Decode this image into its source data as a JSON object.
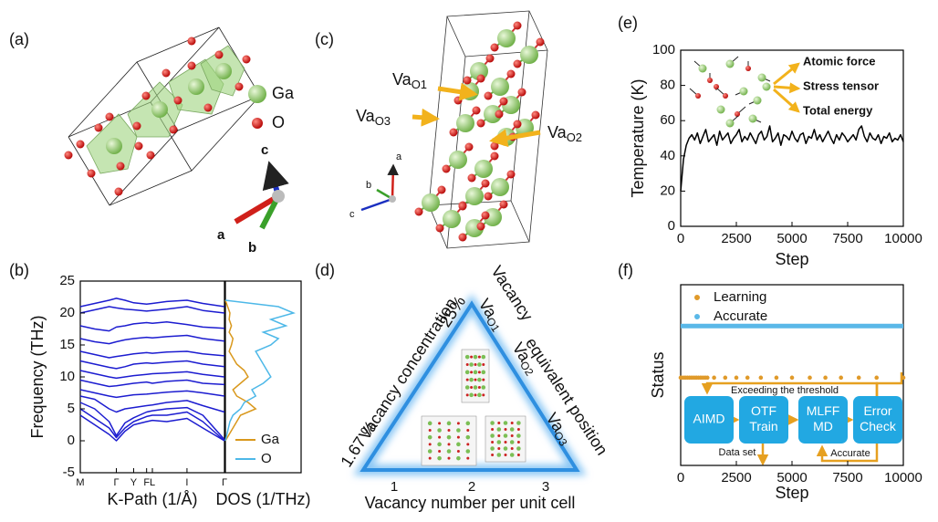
{
  "panel_labels": [
    "(a)",
    "(b)",
    "(c)",
    "(d)",
    "(e)",
    "(f)"
  ],
  "panel_a": {
    "legend": [
      "Ga",
      "O"
    ],
    "axes": [
      "c",
      "a",
      "b"
    ]
  },
  "panel_c": {
    "vacancies": [
      {
        "base": "Va",
        "sub": "O1"
      },
      {
        "base": "Va",
        "sub": "O3"
      },
      {
        "base": "Va",
        "sub": "O2"
      }
    ],
    "axes": [
      "a",
      "b",
      "c"
    ]
  },
  "panel_d": {
    "left_title": "Vacancy  concentration",
    "left_top": "25%",
    "left_bottom": "1.67 %",
    "right_title_1": "Vacancy",
    "right_title_2": "equivalent position",
    "right_labels": [
      {
        "base": "Va",
        "sub": "O1"
      },
      {
        "base": "Va",
        "sub": "O2"
      },
      {
        "base": "Va",
        "sub": "O3"
      }
    ],
    "bottom_ticks": [
      "1",
      "2",
      "3"
    ],
    "bottom_title": "Vacancy number per unit cell"
  },
  "chart_data": [
    {
      "type": "line",
      "ylabel": "Frequency (THz)",
      "xlabel": "K-Path (1/Å)",
      "x": [
        0,
        0.1,
        0.2,
        0.25,
        0.31,
        0.37,
        0.46,
        0.5,
        0.6,
        0.74,
        0.85,
        1.0
      ],
      "series": [
        {
          "color": "#1c1cd0",
          "values": [
            4,
            2.5,
            1,
            0,
            1.5,
            2.5,
            3,
            3.2,
            3,
            3.5,
            2,
            0
          ]
        },
        {
          "color": "#1c1cd0",
          "values": [
            5,
            3.5,
            2,
            0.5,
            2,
            3,
            3.8,
            4,
            4,
            4.5,
            3,
            0
          ]
        },
        {
          "color": "#1c1cd0",
          "values": [
            6,
            5,
            3,
            0.8,
            2.8,
            3.6,
            4.5,
            4.7,
            5,
            5.2,
            4,
            0.2
          ]
        },
        {
          "color": "#1c1cd0",
          "values": [
            7,
            6.5,
            5,
            4.5,
            5,
            5.2,
            5.5,
            5.6,
            6,
            6.3,
            5.5,
            4.5
          ]
        },
        {
          "color": "#1c1cd0",
          "values": [
            8,
            7.5,
            7,
            6.8,
            7,
            7.2,
            7.3,
            7.4,
            7.6,
            7.8,
            7.5,
            7
          ]
        },
        {
          "color": "#1c1cd0",
          "values": [
            9.5,
            9,
            8.5,
            8.6,
            8.8,
            9,
            9.2,
            9,
            9.3,
            9.5,
            9,
            8.8
          ]
        },
        {
          "color": "#1c1cd0",
          "values": [
            11,
            10.5,
            10,
            9.8,
            10,
            10.2,
            10.4,
            10.5,
            10.6,
            10.8,
            10.4,
            10
          ]
        },
        {
          "color": "#1c1cd0",
          "values": [
            12.5,
            12,
            11.5,
            11.3,
            11.6,
            12,
            12.2,
            12.1,
            12.3,
            12.5,
            12,
            11.6
          ]
        },
        {
          "color": "#1c1cd0",
          "values": [
            14,
            13.5,
            13,
            13.2,
            13.4,
            13.6,
            13.8,
            13.7,
            13.9,
            14,
            13.6,
            13.3
          ]
        },
        {
          "color": "#1c1cd0",
          "values": [
            16,
            15.5,
            15.2,
            15.5,
            15.8,
            16,
            16.2,
            16.1,
            16.3,
            16.5,
            16,
            15.6
          ]
        },
        {
          "color": "#1c1cd0",
          "values": [
            18,
            17.5,
            17.2,
            17.8,
            18,
            18.3,
            18.5,
            18.4,
            18.6,
            18.2,
            17.8,
            17.6
          ]
        },
        {
          "color": "#1c1cd0",
          "values": [
            20,
            20.5,
            21,
            20.8,
            20.6,
            20.5,
            20.3,
            20.4,
            20.6,
            21,
            20.4,
            20
          ]
        },
        {
          "color": "#1c1cd0",
          "values": [
            21,
            21.5,
            22,
            22.3,
            22,
            21.6,
            21.4,
            21.5,
            21.8,
            22,
            21.5,
            21
          ]
        }
      ],
      "xlim": [
        0,
        1
      ],
      "ylim": [
        -5,
        25
      ],
      "xticks": [
        {
          "value": 0,
          "label": "M"
        },
        {
          "value": 0.25,
          "label": "Γ"
        },
        {
          "value": 0.37,
          "label": "Y"
        },
        {
          "value": 0.46,
          "label": "F"
        },
        {
          "value": 0.5,
          "label": "L"
        },
        {
          "value": 0.74,
          "label": "I"
        },
        {
          "value": 1.0,
          "label": "Γ"
        }
      ],
      "yticks": [
        -5,
        0,
        5,
        10,
        15,
        20,
        25
      ]
    },
    {
      "type": "dos",
      "xlabel": "DOS (1/THz)",
      "y": [
        0,
        1,
        2,
        3,
        4,
        5,
        6,
        7,
        8,
        9,
        10,
        11,
        12,
        13,
        14,
        15,
        16,
        17,
        18,
        19,
        20,
        21,
        22
      ],
      "series": [
        {
          "name": "Ga",
          "color": "#d9981c",
          "values": [
            0,
            0.05,
            0.1,
            0.15,
            0.2,
            0.4,
            0.3,
            0.15,
            0.1,
            0.2,
            0.3,
            0.25,
            0.15,
            0.1,
            0.05,
            0.08,
            0.1,
            0.05,
            0.08,
            0.05,
            0.06,
            0.03,
            0
          ]
        },
        {
          "name": "O",
          "color": "#4db8e8",
          "values": [
            0,
            0.02,
            0.04,
            0.06,
            0.1,
            0.2,
            0.25,
            0.4,
            0.35,
            0.5,
            0.6,
            0.55,
            0.5,
            0.45,
            0.4,
            0.6,
            0.7,
            0.5,
            0.8,
            0.6,
            0.9,
            0.7,
            0
          ]
        }
      ],
      "xlim": [
        0,
        1
      ],
      "ylim": [
        -5,
        25
      ]
    },
    {
      "type": "line",
      "ylabel": "Temperature (K)",
      "xlabel": "Step",
      "x": [
        0,
        125,
        250,
        375,
        500,
        625,
        750,
        875,
        1000,
        1125,
        1250,
        1375,
        1500,
        1625,
        1750,
        1875,
        2000,
        2125,
        2250,
        2375,
        2500,
        2625,
        2750,
        2875,
        3000,
        3125,
        3250,
        3375,
        3500,
        3625,
        3750,
        3875,
        4000,
        4125,
        4250,
        4375,
        4500,
        4625,
        4750,
        4875,
        5000,
        5125,
        5250,
        5375,
        5500,
        5625,
        5750,
        5875,
        6000,
        6125,
        6250,
        6375,
        6500,
        6625,
        6750,
        6875,
        7000,
        7125,
        7250,
        7375,
        7500,
        7625,
        7750,
        7875,
        8000,
        8125,
        8250,
        8375,
        8500,
        8625,
        8750,
        8875,
        9000,
        9125,
        9250,
        9375,
        9500,
        9625,
        9750,
        9875,
        10000
      ],
      "series": [
        {
          "color": "#000000",
          "values": [
            20,
            38,
            46,
            50,
            52,
            49,
            53,
            47,
            51,
            55,
            48,
            50,
            52,
            46,
            54,
            49,
            51,
            53,
            47,
            50,
            52,
            55,
            48,
            51,
            49,
            53,
            50,
            47,
            52,
            54,
            49,
            51,
            57,
            48,
            50,
            53,
            46,
            52,
            51,
            49,
            54,
            50,
            48,
            52,
            53,
            47,
            51,
            50,
            55,
            49,
            52,
            48,
            51,
            54,
            50,
            47,
            52,
            49,
            53,
            51,
            48,
            50,
            52,
            49,
            55,
            57,
            51,
            48,
            53,
            50,
            49,
            52,
            47,
            51,
            50,
            53,
            48,
            50,
            49,
            52,
            48
          ]
        }
      ],
      "xlim": [
        0,
        10000
      ],
      "ylim": [
        0,
        100
      ],
      "xticks": [
        0,
        2500,
        5000,
        7500,
        10000
      ],
      "yticks": [
        0,
        20,
        40,
        60,
        80,
        100
      ],
      "annotations": [
        "Atomic force",
        "Stress tensor",
        "Total energy"
      ]
    },
    {
      "type": "scatter",
      "ylabel": "Status",
      "xlabel": "Step",
      "series": [
        {
          "name": "Learning",
          "color": "#e09a2a",
          "style": "dots",
          "x": [
            0,
            100,
            200,
            300,
            400,
            500,
            600,
            700,
            800,
            900,
            1000,
            1100,
            1200,
            1500,
            2000,
            2500,
            3000,
            3600,
            4300,
            5000,
            5800,
            6500,
            7200,
            8000,
            8800,
            10000
          ],
          "values": [
            0,
            0,
            0,
            0,
            0,
            0,
            0,
            0,
            0,
            0,
            0,
            0,
            0,
            0,
            0,
            0,
            0,
            0,
            0,
            0,
            0,
            0,
            0,
            0,
            0,
            0
          ]
        },
        {
          "name": "Accurate",
          "color": "#5ab8e8",
          "style": "band",
          "x": [
            0,
            10000
          ],
          "values": [
            1,
            1
          ]
        }
      ],
      "xlim": [
        0,
        10000
      ],
      "ylim": [
        -1.7,
        1.8
      ],
      "xticks": [
        0,
        2500,
        5000,
        7500,
        10000
      ],
      "flow": {
        "boxes": [
          [
            "AIMD"
          ],
          [
            "OTF",
            "Train"
          ],
          [
            "MLFF",
            "MD"
          ],
          [
            "Error",
            "Check"
          ]
        ],
        "labels": [
          "Exceeding the threshold",
          "Data set",
          "Accurate"
        ]
      }
    }
  ]
}
